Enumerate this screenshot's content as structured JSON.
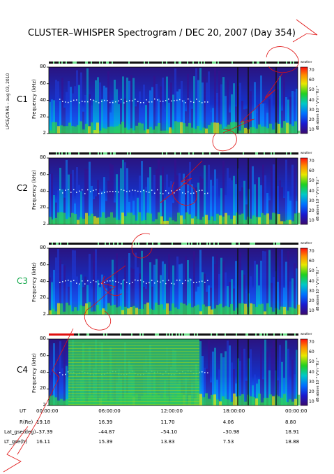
{
  "title": "CLUSTER–WHISPER Spectrogram / DEC 20, 2007 (Day 354)",
  "side_label": "LPCE/CNRS – aug 03, 2010",
  "colorbar": {
    "ticks": [
      "70",
      "60",
      "50",
      "40",
      "30",
      "20",
      "10"
    ],
    "label": "dB above 10⁻⁸ V²m⁻²Hz⁻¹",
    "weather": "weather"
  },
  "colors": {
    "c1": "#000000",
    "c2": "#000000",
    "c3": "#13a84a",
    "c4": "#000000"
  },
  "panels": [
    {
      "id": "C1",
      "ylabel": "Frequency (kHz)",
      "yticks": [
        "80",
        "60",
        "40",
        "20",
        "2"
      ]
    },
    {
      "id": "C2",
      "ylabel": "Frequency (kHz)",
      "yticks": [
        "80",
        "60",
        "40",
        "20",
        "2"
      ]
    },
    {
      "id": "C3",
      "ylabel": "Frequency (kHz)",
      "yticks": [
        "80",
        "60",
        "40",
        "20",
        "2"
      ]
    },
    {
      "id": "C4",
      "ylabel": "Frequency (kHz)",
      "yticks": [
        "80",
        "60",
        "40",
        "20",
        "2"
      ]
    }
  ],
  "ephemeris": {
    "labels": [
      "UT",
      "R(Re)",
      "Lat_gse(deg)",
      "LT_gse(h)"
    ],
    "ut": [
      "00:00:00",
      "06:00:00",
      "12:00:00",
      "18:00:00",
      "00:00:00"
    ],
    "r": [
      "19.18",
      "16.39",
      "11.70",
      "4.06",
      "8.80"
    ],
    "lat": [
      "–37.39",
      "–44.87",
      "–54.10",
      "–30.98",
      "18.91"
    ],
    "lt": [
      "16.11",
      "15.39",
      "13.83",
      "7.53",
      "18.88"
    ]
  },
  "chart_data": {
    "type": "heatmap",
    "title": "CLUSTER–WHISPER Spectrogram / DEC 20, 2007 (Day 354)",
    "xlabel": "UT",
    "ylabel": "Frequency (kHz)",
    "ylim": [
      2,
      80
    ],
    "yticks": [
      2,
      20,
      40,
      60,
      80
    ],
    "xticks": [
      "00:00:00",
      "06:00:00",
      "12:00:00",
      "18:00:00",
      "00:00:00"
    ],
    "colorbar": {
      "range": [
        10,
        70
      ],
      "ticks": [
        10,
        20,
        30,
        40,
        50,
        60,
        70
      ],
      "label": "dB above 10⁻⁸ V²m⁻²Hz⁻¹"
    },
    "series": [
      {
        "name": "C1"
      },
      {
        "name": "C2"
      },
      {
        "name": "C3"
      },
      {
        "name": "C4"
      }
    ]
  }
}
